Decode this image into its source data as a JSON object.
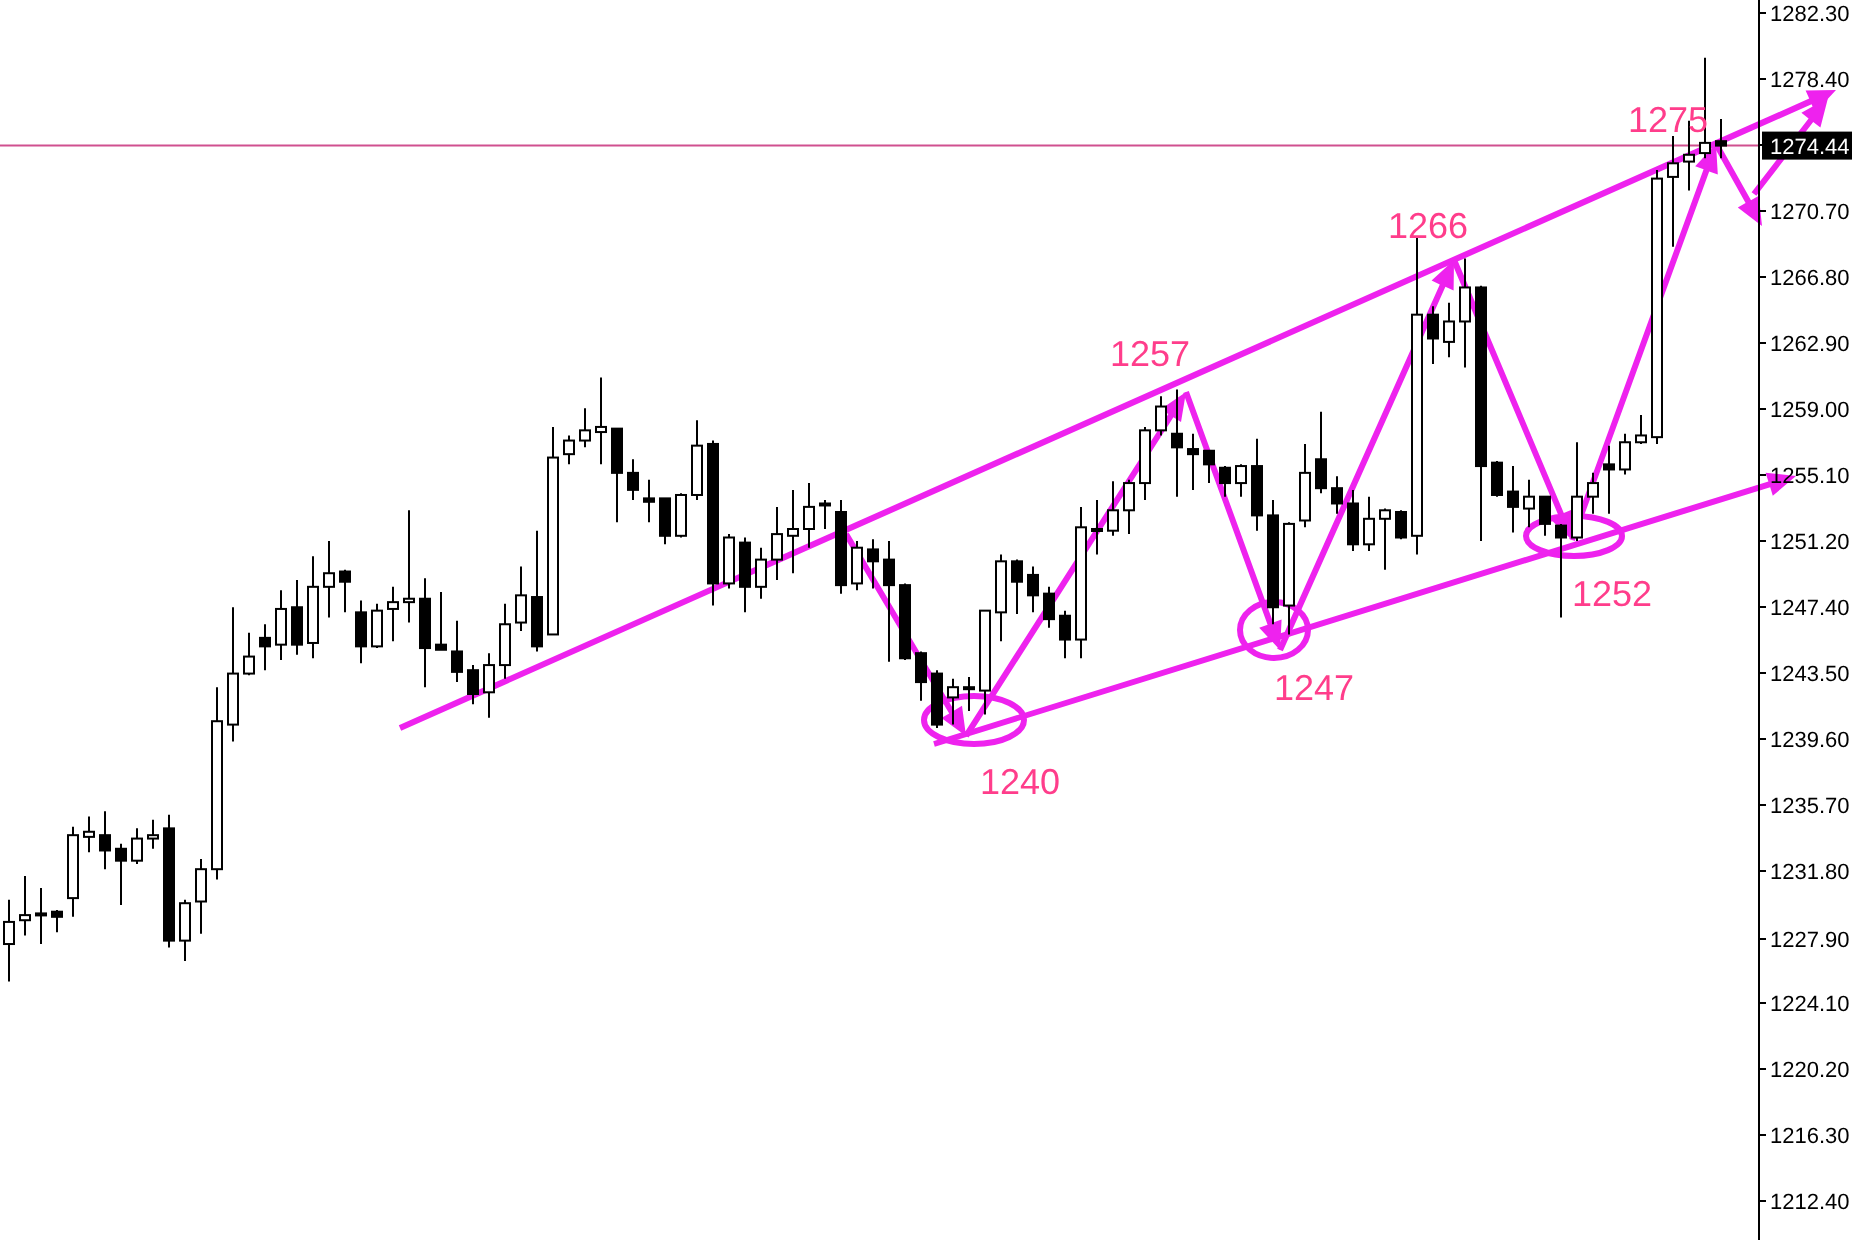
{
  "chart_data": {
    "type": "candlestick",
    "ylim": [
      1210.1,
      1283.0
    ],
    "tick_labels": "y",
    "grid": false,
    "yticks": [
      {
        "value": 1282.3,
        "label": "1282.30"
      },
      {
        "value": 1278.4,
        "label": "1278.40"
      },
      {
        "value": 1274.5,
        "label": null
      },
      {
        "value": 1270.7,
        "label": "1270.70"
      },
      {
        "value": 1266.8,
        "label": "1266.80"
      },
      {
        "value": 1262.9,
        "label": "1262.90"
      },
      {
        "value": 1259.0,
        "label": "1259.00"
      },
      {
        "value": 1255.1,
        "label": "1255.10"
      },
      {
        "value": 1251.2,
        "label": "1251.20"
      },
      {
        "value": 1247.4,
        "label": "1247.40"
      },
      {
        "value": 1243.5,
        "label": "1243.50"
      },
      {
        "value": 1239.6,
        "label": "1239.60"
      },
      {
        "value": 1235.7,
        "label": "1235.70"
      },
      {
        "value": 1231.8,
        "label": "1231.80"
      },
      {
        "value": 1227.9,
        "label": "1227.90"
      },
      {
        "value": 1224.1,
        "label": "1224.10"
      },
      {
        "value": 1220.2,
        "label": "1220.20"
      },
      {
        "value": 1216.3,
        "label": "1216.30"
      },
      {
        "value": 1212.4,
        "label": "1212.40"
      }
    ],
    "categories": [
      null,
      null,
      null,
      null,
      null,
      null,
      null,
      null,
      null,
      null,
      null,
      null,
      null,
      null,
      null,
      null,
      null,
      null,
      null,
      null,
      null,
      null,
      null,
      null,
      null,
      null,
      null,
      null,
      null,
      null,
      null,
      null,
      null,
      null,
      null,
      null,
      null,
      null,
      null,
      null,
      null,
      null,
      null,
      null,
      null,
      null,
      null,
      null,
      null,
      null,
      null,
      null,
      null,
      null,
      null,
      null,
      null,
      null,
      null,
      null,
      null,
      null,
      null,
      null,
      null,
      null,
      null,
      null,
      null,
      null,
      null,
      null,
      null,
      null,
      null,
      null,
      null,
      null,
      null,
      null,
      null,
      null,
      null,
      null,
      null,
      null,
      null,
      null,
      null,
      null,
      null,
      null,
      null,
      null,
      null,
      null,
      null,
      null,
      null,
      null,
      null,
      null,
      null,
      null,
      null,
      null,
      null,
      null
    ],
    "ohlc": [
      [
        1227.5,
        1230.1,
        1225.3,
        1228.8
      ],
      [
        1228.9,
        1231.5,
        1228.0,
        1229.2
      ],
      [
        1229.3,
        1230.8,
        1227.5,
        1229.3
      ],
      [
        1229.4,
        1229.5,
        1228.2,
        1229.1
      ],
      [
        1230.2,
        1234.4,
        1229.1,
        1233.9
      ],
      [
        1233.8,
        1235.0,
        1232.9,
        1234.1
      ],
      [
        1233.9,
        1235.3,
        1231.9,
        1233.0
      ],
      [
        1233.1,
        1233.4,
        1229.8,
        1232.4
      ],
      [
        1232.4,
        1234.3,
        1232.2,
        1233.7
      ],
      [
        1233.7,
        1234.8,
        1233.1,
        1233.9
      ],
      [
        1234.3,
        1235.1,
        1227.3,
        1227.7
      ],
      [
        1227.7,
        1230.1,
        1226.5,
        1229.9
      ],
      [
        1230.0,
        1232.5,
        1228.1,
        1231.9
      ],
      [
        1231.9,
        1242.6,
        1231.3,
        1240.6
      ],
      [
        1240.4,
        1247.3,
        1239.4,
        1243.4
      ],
      [
        1243.4,
        1245.8,
        1243.3,
        1244.4
      ],
      [
        1245.5,
        1246.3,
        1243.6,
        1245.0
      ],
      [
        1245.1,
        1248.3,
        1244.2,
        1247.2
      ],
      [
        1247.3,
        1248.9,
        1244.5,
        1245.1
      ],
      [
        1245.2,
        1250.3,
        1244.3,
        1248.5
      ],
      [
        1248.5,
        1251.2,
        1246.7,
        1249.3
      ],
      [
        1249.4,
        1249.5,
        1247.0,
        1248.8
      ],
      [
        1247.0,
        1247.7,
        1244.0,
        1245.0
      ],
      [
        1245.0,
        1247.5,
        1244.9,
        1247.1
      ],
      [
        1247.2,
        1248.5,
        1245.3,
        1247.6
      ],
      [
        1247.6,
        1253.0,
        1246.4,
        1247.8
      ],
      [
        1247.8,
        1249.0,
        1242.6,
        1244.9
      ],
      [
        1245.1,
        1248.2,
        1244.8,
        1244.8
      ],
      [
        1244.7,
        1246.5,
        1242.9,
        1243.5
      ],
      [
        1243.6,
        1243.9,
        1241.6,
        1242.2
      ],
      [
        1242.3,
        1244.6,
        1240.8,
        1243.9
      ],
      [
        1243.9,
        1247.5,
        1243.1,
        1246.3
      ],
      [
        1246.4,
        1249.7,
        1245.9,
        1248.0
      ],
      [
        1247.9,
        1251.8,
        1244.7,
        1245.0
      ],
      [
        1245.7,
        1257.9,
        1245.7,
        1256.1
      ],
      [
        1256.3,
        1257.4,
        1255.7,
        1257.1
      ],
      [
        1257.1,
        1259.0,
        1256.7,
        1257.7
      ],
      [
        1257.6,
        1260.8,
        1255.7,
        1257.9
      ],
      [
        1257.8,
        1257.8,
        1252.3,
        1255.2
      ],
      [
        1255.2,
        1256.0,
        1253.6,
        1254.2
      ],
      [
        1253.7,
        1254.8,
        1252.3,
        1253.5
      ],
      [
        1253.7,
        1253.7,
        1251.0,
        1251.5
      ],
      [
        1251.5,
        1254.0,
        1251.4,
        1253.9
      ],
      [
        1253.9,
        1258.3,
        1253.6,
        1256.8
      ],
      [
        1256.9,
        1257.1,
        1247.4,
        1248.7
      ],
      [
        1248.7,
        1251.6,
        1248.4,
        1251.4
      ],
      [
        1251.1,
        1251.4,
        1247.0,
        1248.5
      ],
      [
        1248.5,
        1250.8,
        1247.8,
        1250.1
      ],
      [
        1250.1,
        1253.2,
        1248.9,
        1251.6
      ],
      [
        1251.5,
        1254.2,
        1249.3,
        1251.9
      ],
      [
        1251.9,
        1254.6,
        1250.8,
        1253.2
      ],
      [
        1253.4,
        1253.6,
        1251.9,
        1253.3
      ],
      [
        1252.9,
        1253.6,
        1248.1,
        1248.6
      ],
      [
        1248.7,
        1251.2,
        1248.3,
        1250.8
      ],
      [
        1250.7,
        1251.3,
        1248.4,
        1250.0
      ],
      [
        1250.1,
        1251.2,
        1244.1,
        1248.6
      ],
      [
        1248.6,
        1248.7,
        1244.2,
        1244.3
      ],
      [
        1244.6,
        1244.7,
        1241.8,
        1242.9
      ],
      [
        1243.4,
        1243.6,
        1240.2,
        1240.4
      ],
      [
        1242.0,
        1243.1,
        1240.4,
        1242.6
      ],
      [
        1242.6,
        1243.2,
        1241.2,
        1242.5
      ],
      [
        1242.4,
        1247.1,
        1241.0,
        1247.1
      ],
      [
        1247.0,
        1250.4,
        1245.3,
        1250.0
      ],
      [
        1250.0,
        1250.1,
        1246.9,
        1248.8
      ],
      [
        1249.2,
        1249.7,
        1247.0,
        1248.0
      ],
      [
        1248.1,
        1248.5,
        1246.1,
        1246.6
      ],
      [
        1246.8,
        1247.1,
        1244.3,
        1245.4
      ],
      [
        1245.4,
        1253.2,
        1244.3,
        1252.0
      ],
      [
        1251.8,
        1253.6,
        1250.4,
        1251.9
      ],
      [
        1251.8,
        1254.7,
        1251.5,
        1253.0
      ],
      [
        1253.0,
        1254.8,
        1251.6,
        1254.6
      ],
      [
        1254.6,
        1257.9,
        1253.6,
        1257.7
      ],
      [
        1257.7,
        1259.7,
        1257.4,
        1259.1
      ],
      [
        1257.5,
        1260.1,
        1253.8,
        1256.7
      ],
      [
        1256.6,
        1257.5,
        1254.2,
        1256.3
      ],
      [
        1256.5,
        1256.5,
        1254.6,
        1255.7
      ],
      [
        1255.5,
        1255.6,
        1253.8,
        1254.6
      ],
      [
        1254.6,
        1255.7,
        1253.8,
        1255.6
      ],
      [
        1255.6,
        1257.2,
        1251.8,
        1252.7
      ],
      [
        1252.7,
        1253.6,
        1246.3,
        1247.3
      ],
      [
        1247.4,
        1252.3,
        1245.7,
        1252.2
      ],
      [
        1252.4,
        1256.9,
        1252.0,
        1255.2
      ],
      [
        1256.0,
        1258.8,
        1254.0,
        1254.3
      ],
      [
        1254.3,
        1255.0,
        1252.8,
        1253.4
      ],
      [
        1253.4,
        1254.2,
        1250.6,
        1251.0
      ],
      [
        1251.0,
        1253.8,
        1250.6,
        1252.5
      ],
      [
        1252.5,
        1253.1,
        1249.5,
        1253.0
      ],
      [
        1252.9,
        1253.0,
        1251.3,
        1251.4
      ],
      [
        1251.5,
        1269.1,
        1250.4,
        1264.5
      ],
      [
        1264.5,
        1265.0,
        1261.6,
        1263.1
      ],
      [
        1262.9,
        1265.2,
        1262.0,
        1264.1
      ],
      [
        1264.1,
        1267.8,
        1261.4,
        1266.1
      ],
      [
        1266.1,
        1266.2,
        1251.2,
        1255.6
      ],
      [
        1255.8,
        1255.9,
        1253.8,
        1253.9
      ],
      [
        1254.1,
        1255.6,
        1251.7,
        1253.2
      ],
      [
        1253.1,
        1254.8,
        1252.0,
        1253.8
      ],
      [
        1253.8,
        1253.8,
        1251.5,
        1252.2
      ],
      [
        1252.1,
        1252.2,
        1246.7,
        1251.4
      ],
      [
        1251.4,
        1257.0,
        1251.2,
        1253.8
      ],
      [
        1253.8,
        1255.2,
        1252.8,
        1254.6
      ],
      [
        1255.7,
        1256.8,
        1252.8,
        1255.4
      ],
      [
        1255.4,
        1257.5,
        1255.1,
        1257.0
      ],
      [
        1257.0,
        1258.6,
        1256.9,
        1257.4
      ],
      [
        1257.3,
        1273.0,
        1256.9,
        1272.5
      ],
      [
        1272.6,
        1275.0,
        1268.5,
        1273.4
      ],
      [
        1273.5,
        1275.9,
        1271.8,
        1273.9
      ],
      [
        1274.0,
        1279.6,
        1273.7,
        1274.6
      ],
      [
        1274.7,
        1276.0,
        1273.7,
        1274.44
      ]
    ],
    "ref_lines": [
      {
        "axis": "y",
        "value": 1274.44,
        "label": "1274.44",
        "color": "#d0508f"
      }
    ],
    "annotations": [
      "1240",
      "1257",
      "1247",
      "1266",
      "1252",
      "1275"
    ]
  }
}
